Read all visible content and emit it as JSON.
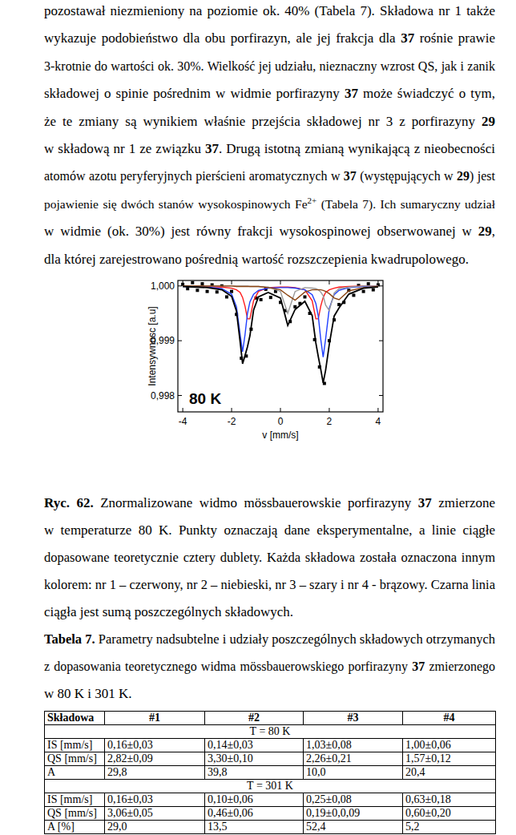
{
  "paragraph": [
    [
      "pozostawał niezmieniony na poziomie ok. 40% (Tabela 7). Składowa nr 1 także"
    ],
    [
      "wykazuje podobieństwo dla obu porfirazyn, ale jej frakcja dla ",
      {
        "bold": "37"
      },
      " rośnie prawie"
    ],
    [
      "3-krotnie do wartości ok. 30%. Wielkość jej udziału, nieznaczny wzrost QS, jak i zanik"
    ],
    [
      "składowej o spinie pośrednim w widmie porfirazyny ",
      {
        "bold": "37"
      },
      " może świadczyć o tym,"
    ],
    [
      "że te zmiany są wynikiem właśnie przejścia składowej nr 3 z porfirazyny ",
      {
        "bold": "29"
      }
    ],
    [
      "w składową nr 1 ze związku ",
      {
        "bold": "37"
      },
      ". Drugą istotną zmianą wynikającą z nieobecności"
    ],
    [
      "atomów azotu peryferyjnych pierścieni aromatycznych w ",
      {
        "bold": "37"
      },
      " (występujących w ",
      {
        "bold": "29"
      },
      ") jest"
    ],
    [
      "pojawienie się dwóch stanów wysokospinowych Fe",
      {
        "sup": "2+"
      },
      " (Tabela 7). Ich sumaryczny udział"
    ],
    [
      "w widmie (ok. 30%) jest równy frakcji wysokospinowej obserwowanej w ",
      {
        "bold": "29"
      },
      ","
    ],
    [
      "dla której zarejestrowano pośrednią wartość rozszczepienia kwadrupolowego."
    ]
  ],
  "chart_data": {
    "type": "scatter",
    "x_label": "v [mm/s]",
    "y_label": "Intensywnosc [a.u]",
    "annotation": "80 K",
    "xlim": [
      -4.2,
      4.2
    ],
    "xticks": [
      -4,
      -2,
      0,
      2,
      4
    ],
    "ylim": [
      0.9977,
      1.0001
    ],
    "yticks": [
      {
        "value": 0.998,
        "label": "0,998"
      },
      {
        "value": 0.999,
        "label": "0,999"
      },
      {
        "value": 1.0,
        "label": "1,000"
      }
    ],
    "grid": false,
    "series": [
      {
        "type": "scatter",
        "marker": "square",
        "color": "#000000",
        "x": [
          -4,
          -3.8,
          -3.6,
          -3.4,
          -3.2,
          -3,
          -2.8,
          -2.6,
          -2.4,
          -2.2,
          -2,
          -1.8,
          -1.6,
          -1.4,
          -1.2,
          -1,
          -0.8,
          -0.6,
          -0.4,
          -0.2,
          0,
          0.2,
          0.4,
          0.6,
          0.8,
          1,
          1.2,
          1.4,
          1.6,
          1.8,
          2,
          2.2,
          2.4,
          2.6,
          2.8,
          3,
          3.2,
          3.4,
          3.6,
          3.8,
          4
        ],
        "values": [
          1.00003,
          0.99995,
          1.00006,
          0.99992,
          1.00004,
          0.9999,
          1.00002,
          0.99989,
          1.0,
          0.9998,
          0.9999,
          0.99948,
          0.99868,
          0.99872,
          0.99921,
          0.99978,
          0.99975,
          0.99994,
          0.99979,
          0.9999,
          0.9997,
          0.99955,
          0.99935,
          0.99962,
          0.99968,
          0.9998,
          0.9995,
          0.99902,
          0.99852,
          0.99822,
          0.999,
          0.99938,
          0.99966,
          0.9997,
          0.99992,
          0.99983,
          1.00001,
          0.9999,
          1.00004,
          0.99993,
          1.00002
        ]
      },
      {
        "type": "line",
        "line_style": "solid",
        "color": "#ff1a1a",
        "x": [
          -4,
          -3,
          -2.4,
          -2,
          -1.8,
          -1.65,
          -1.55,
          -1.45,
          -1.35,
          -1.25,
          -1.1,
          -0.9,
          -0.5,
          0,
          0.3,
          0.6,
          1,
          1.3,
          1.45,
          1.55,
          1.65,
          1.75,
          1.85,
          2,
          2.2,
          2.4,
          2.8,
          3.4,
          4
        ],
        "values": [
          1,
          0.99999,
          0.99998,
          0.99996,
          0.99993,
          0.99988,
          0.99979,
          0.99963,
          0.9994,
          0.9994,
          0.99973,
          0.9999,
          0.99997,
          0.99998,
          0.99998,
          0.99997,
          0.99993,
          0.99973,
          0.9994,
          0.9994,
          0.99963,
          0.99979,
          0.99988,
          0.99993,
          0.99996,
          0.99998,
          0.99999,
          1,
          1
        ]
      },
      {
        "type": "line",
        "line_style": "solid",
        "color": "#1f3fff",
        "x": [
          -4,
          -3,
          -2.4,
          -2,
          -1.8,
          -1.65,
          -1.55,
          -1.45,
          -1.35,
          -1.25,
          -1.1,
          -0.9,
          -0.5,
          0,
          0.3,
          0.6,
          1,
          1.3,
          1.45,
          1.55,
          1.65,
          1.75,
          1.85,
          2,
          2.2,
          2.4,
          2.8,
          3.4,
          4
        ],
        "values": [
          0.99999,
          0.99998,
          0.99995,
          0.99985,
          0.99962,
          0.99911,
          0.9988,
          0.99911,
          0.9995,
          0.99971,
          0.99985,
          0.99992,
          0.99996,
          0.99997,
          0.99997,
          0.99996,
          0.99993,
          0.99984,
          0.99968,
          0.99945,
          0.99903,
          0.9987,
          0.99903,
          0.99959,
          0.99984,
          0.99992,
          0.99997,
          0.99999,
          0.99999
        ]
      },
      {
        "type": "line",
        "line_style": "solid",
        "color": "#9a9a9a",
        "x": [
          -4,
          -3,
          -2.4,
          -2,
          -1.8,
          -1.65,
          -1.55,
          -1.45,
          -1.35,
          -1.25,
          -1.1,
          -0.9,
          -0.5,
          0,
          0.3,
          0.6,
          1,
          1.3,
          1.45,
          1.55,
          1.65,
          1.75,
          1.85,
          2,
          2.2,
          2.4,
          2.8,
          3.4,
          4
        ],
        "values": [
          1,
          1,
          1,
          1,
          1,
          1,
          1,
          1,
          1,
          0.99999,
          0.99999,
          0.99999,
          0.99998,
          0.9999,
          0.9995,
          0.9999,
          0.99997,
          0.99996,
          0.99995,
          0.99993,
          0.99989,
          0.99982,
          0.99965,
          0.99955,
          0.99987,
          0.99995,
          0.99998,
          1,
          1
        ]
      },
      {
        "type": "line",
        "line_style": "solid",
        "color": "#8b4513",
        "x": [
          -4,
          -3,
          -2.4,
          -2,
          -1.8,
          -1.65,
          -1.55,
          -1.45,
          -1.35,
          -1.25,
          -1.1,
          -0.9,
          -0.5,
          0,
          0.3,
          0.6,
          1,
          1.3,
          1.45,
          1.55,
          1.65,
          1.75,
          1.85,
          2,
          2.2,
          2.4,
          2.8,
          3.4,
          4
        ],
        "values": [
          1,
          1,
          1,
          1,
          0.99999,
          0.99999,
          0.99999,
          0.99999,
          0.99999,
          0.99999,
          0.99999,
          0.99999,
          0.99997,
          0.99993,
          0.99983,
          0.99974,
          0.99989,
          0.99993,
          0.99993,
          0.99993,
          0.99993,
          0.99992,
          0.9999,
          0.99986,
          0.99978,
          0.99975,
          0.99991,
          0.99997,
          0.99999
        ]
      },
      {
        "type": "line",
        "line_style": "solid",
        "color": "#000000",
        "x": [
          -4,
          -3,
          -2.4,
          -2,
          -1.8,
          -1.65,
          -1.55,
          -1.45,
          -1.35,
          -1.25,
          -1.1,
          -0.9,
          -0.5,
          0,
          0.3,
          0.6,
          1,
          1.3,
          1.45,
          1.55,
          1.65,
          1.75,
          1.85,
          2,
          2.2,
          2.4,
          2.8,
          3.4,
          4
        ],
        "values": [
          0.99999,
          0.99997,
          0.99993,
          0.99981,
          0.99954,
          0.99898,
          0.99858,
          0.99873,
          0.99889,
          0.99909,
          0.99956,
          0.9998,
          0.99988,
          0.99978,
          0.99928,
          0.99957,
          0.99972,
          0.99946,
          0.99896,
          0.99871,
          0.99848,
          0.99823,
          0.99846,
          0.99893,
          0.99945,
          0.9996,
          0.99985,
          0.99996,
          0.99998
        ]
      }
    ]
  },
  "figure_caption": [
    [
      {
        "bold": "Ryc. 62."
      },
      " Znormalizowane widmo mössbauerowskie porfirazyny ",
      {
        "bold": "37"
      },
      " zmierzone"
    ],
    [
      "w temperaturze 80 K. Punkty oznaczają dane eksperymentalne, a linie ciągłe"
    ],
    [
      "dopasowane teoretycznie cztery dublety. Każda składowa została oznaczona innym"
    ],
    [
      "kolorem: nr 1 – czerwony, nr 2 – niebieski, nr 3 – szary i nr 4 - brązowy. Czarna linia"
    ],
    [
      "ciągła jest sumą poszczególnych składowych."
    ]
  ],
  "table_caption": [
    [
      {
        "bold": "Tabela 7."
      },
      " Parametry nadsubtelne i udziały poszczególnych składowych otrzymanych"
    ],
    [
      "z dopasowania teoretycznego widma mössbauerowskiego porfirazyny ",
      {
        "bold": "37"
      },
      " zmierzonego"
    ],
    [
      "w 80 K i 301 K."
    ]
  ],
  "table": {
    "header": [
      "Składowa",
      "#1",
      "#2",
      "#3",
      "#4"
    ],
    "sections": [
      {
        "title": "T = 80 K",
        "rows": [
          [
            "IS [mm/s]",
            "0,16±0,03",
            "0,14±0,03",
            "1,03±0,08",
            "1,00±0,06"
          ],
          [
            "QS [mm/s]",
            "2,82±0,09",
            "3,30±0,10",
            "2,26±0,21",
            "1,57±0,12"
          ],
          [
            "A",
            "29,8",
            "39,8",
            "10,0",
            "20,4"
          ]
        ]
      },
      {
        "title": "T = 301 K",
        "rows": [
          [
            "IS [mm/s]",
            "0,16±0,03",
            "0,10±0,06",
            "0,25±0,08",
            "0,63±0,18"
          ],
          [
            "QS [mm/s]",
            "3,06±0,05",
            "0,46±0,06",
            "0,19±0,0,09",
            "0,60±0,20"
          ],
          [
            "A [%]",
            "29,0",
            "13,5",
            "52,4",
            "5,2"
          ]
        ]
      }
    ]
  }
}
